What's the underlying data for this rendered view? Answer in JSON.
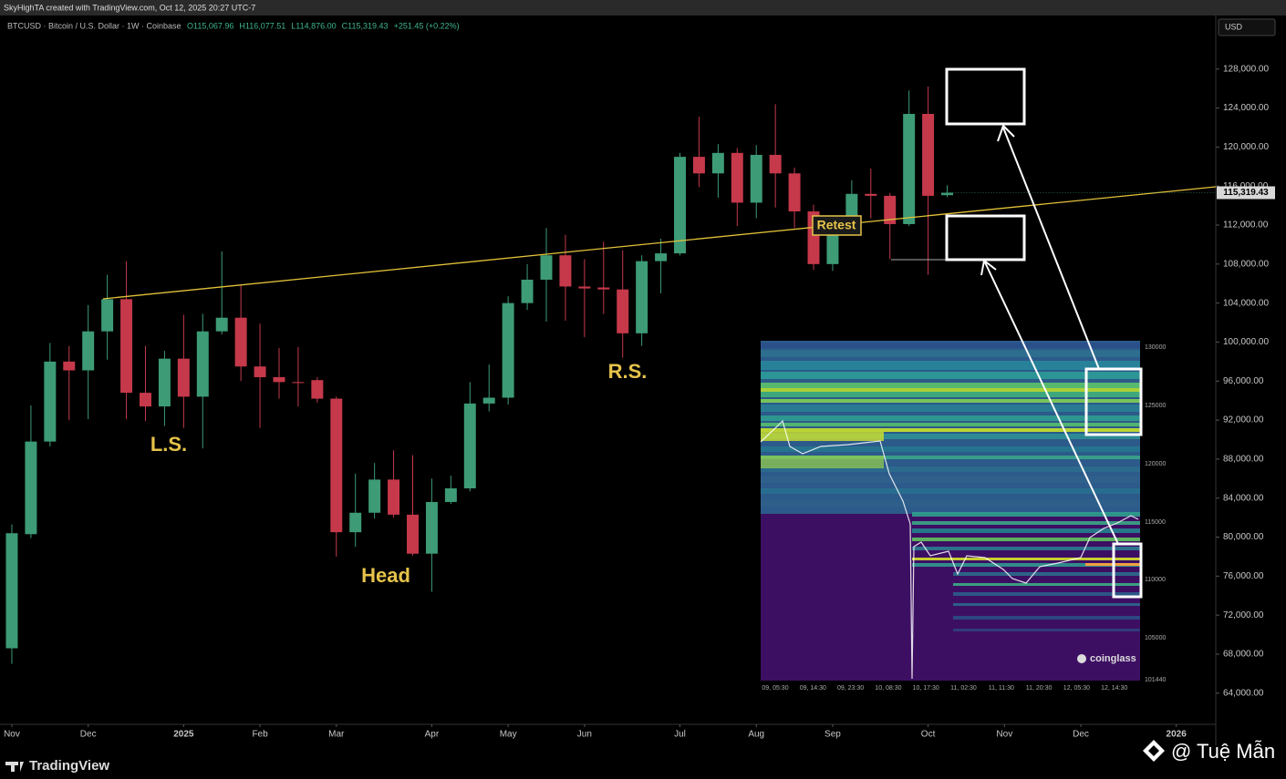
{
  "header": {
    "caption": "SkyHighTA created with TradingView.com, Oct 12, 2025 20:27 UTC-7",
    "symbol": "BTCUSD · Bitcoin / U.S. Dollar · 1W · Coinbase",
    "ohlc": [
      "O115,067.96",
      "H116,077.51",
      "L114,876.00",
      "C115,319.43",
      "+251.45 (+0.22%)"
    ],
    "currency": "USD"
  },
  "chart_data": {
    "type": "candlestick",
    "x": [
      0,
      1,
      2,
      3,
      4,
      5,
      6,
      7,
      8,
      9,
      10,
      11,
      12,
      13,
      14,
      15,
      16,
      17,
      18,
      19,
      20,
      21,
      22,
      23,
      24,
      25,
      26,
      27,
      28,
      29,
      30,
      31,
      32,
      33,
      34,
      35,
      36,
      37,
      38,
      39,
      40,
      41,
      42,
      43,
      44,
      45,
      46,
      47,
      48,
      49
    ],
    "open": [
      68600,
      80300,
      89800,
      98000,
      97100,
      101100,
      104400,
      94800,
      93400,
      98300,
      94400,
      101100,
      102500,
      97500,
      96400,
      95900,
      96100,
      94200,
      80500,
      82500,
      85900,
      82300,
      78300,
      83600,
      85000,
      93700,
      94300,
      104000,
      106400,
      108900,
      105700,
      105600,
      105400,
      100900,
      108300,
      109100,
      119000,
      117300,
      119400,
      114300,
      119200,
      117300,
      113400,
      108000,
      111100,
      115200,
      115000,
      112100,
      123400,
      115067.96
    ],
    "high": [
      81300,
      93500,
      99900,
      99600,
      103800,
      106900,
      108300,
      99600,
      99100,
      102800,
      102900,
      109300,
      105800,
      101900,
      99400,
      99500,
      96400,
      94400,
      86500,
      87600,
      88900,
      88400,
      86000,
      86300,
      95900,
      97700,
      104700,
      108000,
      111700,
      111000,
      108500,
      110300,
      109400,
      108900,
      110600,
      119400,
      123100,
      120300,
      119900,
      120200,
      124400,
      117900,
      114100,
      112200,
      116600,
      117800,
      115300,
      125800,
      126200,
      116077.51
    ],
    "low": [
      67000,
      79900,
      89300,
      92000,
      92100,
      98200,
      92100,
      91900,
      91400,
      91200,
      89100,
      100800,
      96000,
      91200,
      94200,
      93400,
      93800,
      78000,
      79000,
      81900,
      82000,
      78100,
      74400,
      83400,
      84700,
      92900,
      93600,
      103300,
      102100,
      102200,
      100500,
      102900,
      98400,
      99600,
      105000,
      108900,
      115900,
      114800,
      111900,
      112700,
      113800,
      111700,
      107400,
      107300,
      111000,
      112700,
      108500,
      111900,
      106900,
      114876
    ],
    "close": [
      80400,
      89800,
      98000,
      97100,
      101100,
      104400,
      94800,
      93400,
      98300,
      94400,
      101100,
      102500,
      97500,
      96400,
      95900,
      95800,
      94200,
      80500,
      82500,
      85900,
      82300,
      78300,
      83600,
      85000,
      93700,
      94300,
      104000,
      106400,
      108900,
      105700,
      105500,
      105400,
      100900,
      108300,
      109100,
      119000,
      117300,
      119400,
      114300,
      119200,
      117300,
      113400,
      108000,
      111100,
      115200,
      115000,
      112100,
      123400,
      115000,
      115319.43
    ],
    "last_label": "115,319.43",
    "up_color": "#3d9b76",
    "down_color": "#c5394b",
    "xlim": [
      -0.62,
      63.07
    ],
    "xticks": [
      {
        "value": 0,
        "label": "Nov"
      },
      {
        "value": 4,
        "label": "Dec"
      },
      {
        "value": 9,
        "label": "2025"
      },
      {
        "value": 13,
        "label": "Feb"
      },
      {
        "value": 17,
        "label": "Mar"
      },
      {
        "value": 22,
        "label": "Apr"
      },
      {
        "value": 26,
        "label": "May"
      },
      {
        "value": 30,
        "label": "Jun"
      },
      {
        "value": 35,
        "label": "Jul"
      },
      {
        "value": 39,
        "label": "Aug"
      },
      {
        "value": 43,
        "label": "Sep"
      },
      {
        "value": 48,
        "label": "Oct"
      },
      {
        "value": 52,
        "label": "Nov"
      },
      {
        "value": 56,
        "label": "Dec"
      },
      {
        "value": 61,
        "label": "2026"
      }
    ],
    "ylim": [
      60800,
      133400
    ],
    "yticks": [
      {
        "value": 64000,
        "label": "64,000.00"
      },
      {
        "value": 68000,
        "label": "68,000.00"
      },
      {
        "value": 72000,
        "label": "72,000.00"
      },
      {
        "value": 76000,
        "label": "76,000.00"
      },
      {
        "value": 80000,
        "label": "80,000.00"
      },
      {
        "value": 84000,
        "label": "84,000.00"
      },
      {
        "value": 88000,
        "label": "88,000.00"
      },
      {
        "value": 92000,
        "label": "92,000.00"
      },
      {
        "value": 96000,
        "label": "96,000.00"
      },
      {
        "value": 100000,
        "label": "100,000.00"
      },
      {
        "value": 104000,
        "label": "104,000.00"
      },
      {
        "value": 108000,
        "label": "108,000.00"
      },
      {
        "value": 112000,
        "label": "112,000.00"
      },
      {
        "value": 116000,
        "label": "116,000.00"
      },
      {
        "value": 120000,
        "label": "120,000.00"
      },
      {
        "value": 124000,
        "label": "124,000.00"
      },
      {
        "value": 128000,
        "label": "128,000.00"
      }
    ],
    "grid": false,
    "annotations": [
      "L.S.",
      "Head",
      "R.S.",
      "Retest"
    ]
  },
  "inset": {
    "brand": "coinglass",
    "yticks": [
      "130000",
      "125000",
      "120000",
      "115000",
      "110000",
      "105000",
      "101440"
    ],
    "xticks": [
      "09, 05:30",
      "09, 14:30",
      "09, 23:30",
      "10, 08:30",
      "10, 17:30",
      "11, 02:30",
      "11, 11:30",
      "11, 20:30",
      "12, 05:30",
      "12, 14:30"
    ]
  },
  "footer": {
    "logo": "TradingView",
    "watermark": "@ Tuệ Mẫn"
  }
}
